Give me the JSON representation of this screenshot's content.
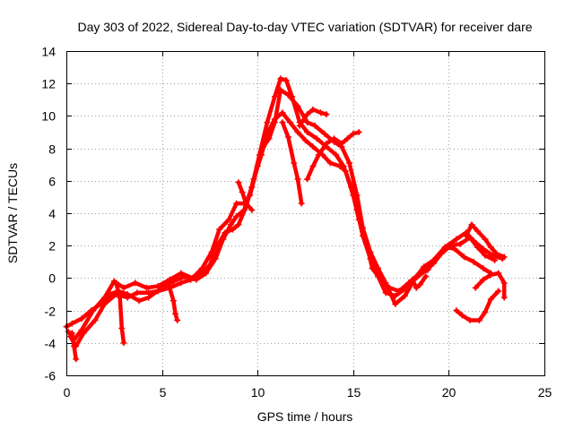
{
  "chart_data": {
    "type": "scatter",
    "title": "Day 303 of 2022, Sidereal Day-to-day VTEC variation (SDTVAR) for receiver dare",
    "xlabel": "GPS time / hours",
    "ylabel": "SDTVAR / TECUs",
    "xlim": [
      0,
      25
    ],
    "ylim": [
      -6,
      14
    ],
    "xticks": [
      "0",
      "5",
      "10",
      "15",
      "20",
      "25"
    ],
    "yticks": [
      "-6",
      "-4",
      "-2",
      "0",
      "2",
      "4",
      "6",
      "8",
      "10",
      "12",
      "14"
    ],
    "grid": true,
    "marker": "+",
    "color": "#ff0000",
    "series": [
      {
        "name": "trace-1",
        "points": [
          [
            0.0,
            -3.0
          ],
          [
            0.3,
            -2.8
          ],
          [
            0.8,
            -2.5
          ],
          [
            1.3,
            -2.0
          ],
          [
            1.8,
            -1.6
          ],
          [
            2.3,
            -1.0
          ],
          [
            2.7,
            -0.8
          ],
          [
            3.2,
            -1.0
          ],
          [
            3.8,
            -1.4
          ],
          [
            4.3,
            -1.2
          ],
          [
            5.0,
            -0.6
          ],
          [
            5.6,
            -0.2
          ],
          [
            6.2,
            0.1
          ],
          [
            6.8,
            -0.1
          ],
          [
            7.3,
            0.3
          ],
          [
            7.8,
            1.2
          ],
          [
            8.2,
            2.4
          ],
          [
            8.6,
            3.3
          ],
          [
            8.9,
            3.8
          ],
          [
            9.3,
            4.2
          ],
          [
            9.7,
            5.6
          ],
          [
            10.1,
            7.6
          ],
          [
            10.5,
            9.6
          ],
          [
            10.9,
            11.2
          ],
          [
            11.2,
            12.3
          ],
          [
            11.5,
            12.2
          ],
          [
            11.8,
            11.2
          ],
          [
            12.2,
            9.6
          ],
          [
            12.6,
            9.0
          ],
          [
            13.1,
            8.6
          ],
          [
            13.6,
            8.1
          ],
          [
            14.1,
            7.6
          ],
          [
            14.5,
            6.9
          ],
          [
            14.9,
            5.6
          ],
          [
            15.2,
            4.2
          ],
          [
            15.5,
            2.6
          ],
          [
            15.9,
            1.2
          ],
          [
            16.3,
            0.1
          ],
          [
            16.7,
            -0.9
          ],
          [
            17.2,
            -1.1
          ],
          [
            17.8,
            -0.6
          ],
          [
            18.3,
            0.1
          ],
          [
            18.7,
            0.7
          ],
          [
            19.2,
            1.1
          ],
          [
            19.8,
            1.9
          ],
          [
            20.4,
            2.4
          ],
          [
            20.9,
            2.8
          ],
          [
            21.3,
            2.3
          ],
          [
            21.8,
            1.8
          ],
          [
            22.3,
            1.4
          ],
          [
            22.8,
            1.2
          ]
        ]
      },
      {
        "name": "trace-2",
        "points": [
          [
            0.1,
            -3.3
          ],
          [
            0.4,
            -3.8
          ],
          [
            0.8,
            -3.2
          ],
          [
            1.4,
            -2.0
          ],
          [
            2.0,
            -1.2
          ],
          [
            2.5,
            -0.2
          ],
          [
            3.0,
            -0.6
          ],
          [
            3.6,
            -0.3
          ],
          [
            4.2,
            -0.6
          ],
          [
            4.8,
            -0.5
          ],
          [
            5.4,
            -0.1
          ],
          [
            6.0,
            0.3
          ],
          [
            6.6,
            0.0
          ],
          [
            7.1,
            0.6
          ],
          [
            7.6,
            1.6
          ],
          [
            8.0,
            3.0
          ],
          [
            8.5,
            3.6
          ],
          [
            8.9,
            4.6
          ],
          [
            9.3,
            4.6
          ],
          [
            9.6,
            5.1
          ],
          [
            10.0,
            6.9
          ],
          [
            10.3,
            8.1
          ],
          [
            10.6,
            8.6
          ],
          [
            10.9,
            9.6
          ],
          [
            11.2,
            11.6
          ],
          [
            11.6,
            11.3
          ],
          [
            12.1,
            10.6
          ],
          [
            12.6,
            9.6
          ],
          [
            13.0,
            9.4
          ],
          [
            13.5,
            8.9
          ],
          [
            14.0,
            8.4
          ],
          [
            14.4,
            8.1
          ],
          [
            14.8,
            7.1
          ],
          [
            15.2,
            5.1
          ],
          [
            15.5,
            3.1
          ],
          [
            15.9,
            1.6
          ],
          [
            16.3,
            0.6
          ],
          [
            16.7,
            -0.3
          ],
          [
            17.2,
            -1.6
          ],
          [
            17.7,
            -1.1
          ],
          [
            18.2,
            -0.1
          ],
          [
            18.7,
            0.4
          ],
          [
            19.2,
            0.9
          ],
          [
            19.6,
            1.5
          ],
          [
            20.1,
            2.0
          ],
          [
            20.6,
            2.1
          ],
          [
            21.1,
            2.5
          ],
          [
            21.5,
            1.9
          ],
          [
            21.9,
            1.4
          ],
          [
            22.4,
            1.1
          ]
        ]
      },
      {
        "name": "trace-3",
        "points": [
          [
            0.2,
            -3.6
          ],
          [
            0.5,
            -4.2
          ],
          [
            0.9,
            -3.4
          ],
          [
            1.5,
            -2.6
          ],
          [
            2.0,
            -1.6
          ],
          [
            2.6,
            -1.0
          ],
          [
            3.2,
            -1.2
          ],
          [
            3.7,
            -0.9
          ],
          [
            4.3,
            -0.9
          ],
          [
            4.8,
            -0.8
          ],
          [
            5.4,
            -0.6
          ],
          [
            6.0,
            -0.3
          ],
          [
            6.5,
            -0.1
          ],
          [
            7.0,
            0.2
          ],
          [
            7.5,
            0.8
          ],
          [
            7.9,
            2.0
          ],
          [
            8.3,
            2.8
          ],
          [
            8.7,
            3.0
          ],
          [
            9.0,
            3.3
          ],
          [
            9.4,
            4.4
          ],
          [
            9.8,
            6.1
          ],
          [
            10.2,
            7.6
          ],
          [
            10.5,
            8.9
          ],
          [
            10.9,
            9.8
          ],
          [
            11.3,
            10.2
          ],
          [
            11.7,
            9.6
          ],
          [
            12.1,
            9.0
          ],
          [
            12.5,
            8.5
          ],
          [
            12.9,
            8.1
          ],
          [
            13.4,
            7.6
          ],
          [
            13.8,
            7.1
          ],
          [
            14.3,
            6.9
          ],
          [
            14.6,
            6.6
          ],
          [
            15.0,
            5.1
          ],
          [
            15.3,
            3.6
          ],
          [
            15.7,
            2.1
          ],
          [
            16.0,
            0.6
          ],
          [
            16.5,
            -0.2
          ],
          [
            16.9,
            -0.6
          ],
          [
            17.4,
            -0.8
          ],
          [
            17.9,
            -0.3
          ],
          [
            18.4,
            0.2
          ],
          [
            18.9,
            0.5
          ],
          [
            19.4,
            1.3
          ],
          [
            19.9,
            1.9
          ],
          [
            20.3,
            1.8
          ],
          [
            20.8,
            1.3
          ],
          [
            21.3,
            1.0
          ],
          [
            21.8,
            0.6
          ],
          [
            22.2,
            0.3
          ]
        ]
      },
      {
        "name": "fragment-1",
        "points": [
          [
            9.0,
            5.9
          ],
          [
            9.2,
            5.3
          ],
          [
            9.4,
            4.6
          ],
          [
            9.7,
            4.2
          ]
        ]
      },
      {
        "name": "fragment-2",
        "points": [
          [
            11.3,
            9.6
          ],
          [
            11.6,
            8.7
          ],
          [
            11.9,
            7.1
          ],
          [
            12.1,
            6.1
          ],
          [
            12.3,
            4.6
          ]
        ]
      },
      {
        "name": "fragment-3",
        "points": [
          [
            12.6,
            6.1
          ],
          [
            12.9,
            6.9
          ],
          [
            13.2,
            7.6
          ],
          [
            13.6,
            8.3
          ],
          [
            14.0,
            8.6
          ],
          [
            14.4,
            8.3
          ],
          [
            14.7,
            8.6
          ],
          [
            15.0,
            8.9
          ],
          [
            15.3,
            9.0
          ]
        ]
      },
      {
        "name": "fragment-4",
        "points": [
          [
            12.2,
            9.4
          ],
          [
            12.6,
            10.1
          ],
          [
            12.9,
            10.4
          ],
          [
            13.3,
            10.2
          ],
          [
            13.6,
            10.1
          ]
        ]
      },
      {
        "name": "fragment-5",
        "points": [
          [
            2.6,
            -0.3
          ],
          [
            2.8,
            -1.2
          ],
          [
            2.9,
            -3.1
          ],
          [
            3.0,
            -4.0
          ]
        ]
      },
      {
        "name": "fragment-6",
        "points": [
          [
            5.4,
            -0.6
          ],
          [
            5.6,
            -1.4
          ],
          [
            5.7,
            -2.2
          ],
          [
            5.8,
            -2.6
          ]
        ]
      },
      {
        "name": "fragment-7",
        "points": [
          [
            0.3,
            -3.4
          ],
          [
            0.4,
            -4.2
          ],
          [
            0.5,
            -5.0
          ]
        ]
      },
      {
        "name": "fragment-8",
        "points": [
          [
            20.4,
            -2.0
          ],
          [
            20.7,
            -2.3
          ],
          [
            21.1,
            -2.6
          ],
          [
            21.6,
            -2.6
          ],
          [
            21.9,
            -2.1
          ],
          [
            22.2,
            -1.3
          ],
          [
            22.6,
            -0.8
          ]
        ]
      },
      {
        "name": "fragment-9",
        "points": [
          [
            21.4,
            -0.6
          ],
          [
            21.8,
            -0.1
          ],
          [
            22.2,
            0.2
          ],
          [
            22.6,
            0.3
          ],
          [
            22.9,
            -0.3
          ],
          [
            22.9,
            -1.2
          ]
        ]
      },
      {
        "name": "fragment-10",
        "points": [
          [
            20.9,
            2.6
          ],
          [
            21.2,
            3.3
          ],
          [
            21.5,
            2.9
          ],
          [
            21.9,
            2.4
          ],
          [
            22.2,
            1.9
          ],
          [
            22.5,
            1.5
          ],
          [
            22.9,
            1.3
          ]
        ]
      },
      {
        "name": "fragment-11",
        "points": [
          [
            18.1,
            -0.1
          ],
          [
            18.3,
            -0.6
          ],
          [
            18.5,
            -0.4
          ],
          [
            18.8,
            0.1
          ]
        ]
      }
    ]
  }
}
